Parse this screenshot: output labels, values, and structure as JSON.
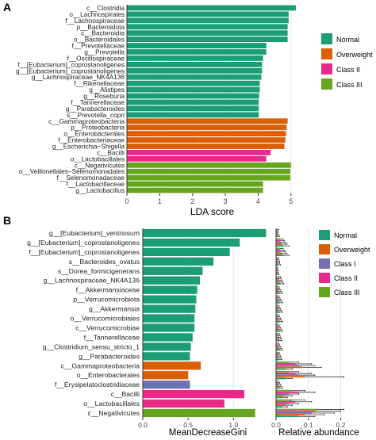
{
  "colors": {
    "normal": "#1b9e77",
    "overweight": "#d95f02",
    "class1": "#7570b3",
    "class2": "#e7298a",
    "class3": "#66a61e"
  },
  "chart_data": [
    {
      "type": "bar",
      "orientation": "horizontal",
      "panel": "A",
      "xlabel": "LDA score",
      "xlim": [
        0,
        5.2
      ],
      "xticks": [
        0,
        1,
        2,
        3,
        4,
        5
      ],
      "grid": true,
      "legend_placement": "right",
      "legend": [
        {
          "name": "Normal",
          "color_key": "normal"
        },
        {
          "name": "Overweight",
          "color_key": "overweight"
        },
        {
          "name": "Class II",
          "color_key": "class2"
        },
        {
          "name": "Class III",
          "color_key": "class3"
        }
      ],
      "bars": [
        {
          "label": "c__Clostridia",
          "value": 5.15,
          "group": "normal"
        },
        {
          "label": "o__Lachnospirales",
          "value": 4.93,
          "group": "normal"
        },
        {
          "label": "f__Lachnospiraceae",
          "value": 4.93,
          "group": "normal"
        },
        {
          "label": "p__Bacteroidota",
          "value": 4.9,
          "group": "normal"
        },
        {
          "label": "c__Bacteroidia",
          "value": 4.9,
          "group": "normal"
        },
        {
          "label": "o__Bacteroidales",
          "value": 4.9,
          "group": "normal"
        },
        {
          "label": "f__Prevotellaceae",
          "value": 4.25,
          "group": "normal"
        },
        {
          "label": "g__Prevotella",
          "value": 4.25,
          "group": "normal"
        },
        {
          "label": "f__Oscillospiraceae",
          "value": 4.15,
          "group": "normal"
        },
        {
          "label": "f__[Eubacterium]_coprostanoligenes",
          "value": 4.12,
          "group": "normal"
        },
        {
          "label": "g__[Eubacterium]_coprostanoligenes",
          "value": 4.12,
          "group": "normal"
        },
        {
          "label": "g__Lachnospiraceae_NK4A136",
          "value": 4.1,
          "group": "normal"
        },
        {
          "label": "f__Rikenellaceae",
          "value": 4.05,
          "group": "normal"
        },
        {
          "label": "g__Alistipes",
          "value": 4.05,
          "group": "normal"
        },
        {
          "label": "g__Roseburia",
          "value": 4.03,
          "group": "normal"
        },
        {
          "label": "f__Tannerellaceae",
          "value": 4.02,
          "group": "normal"
        },
        {
          "label": "g__Parabacteroides",
          "value": 4.02,
          "group": "normal"
        },
        {
          "label": "s__Prevotella_copri",
          "value": 4.02,
          "group": "normal"
        },
        {
          "label": "c__Gammaproteobacteria",
          "value": 4.9,
          "group": "overweight"
        },
        {
          "label": "p__Proteobacteria",
          "value": 4.87,
          "group": "overweight"
        },
        {
          "label": "o__Enterobacterales",
          "value": 4.85,
          "group": "overweight"
        },
        {
          "label": "f__Enterobacteriaceae",
          "value": 4.83,
          "group": "overweight"
        },
        {
          "label": "g__Escherichia−Shigella",
          "value": 4.8,
          "group": "overweight"
        },
        {
          "label": "c__Bacilli",
          "value": 4.38,
          "group": "class2"
        },
        {
          "label": "o__Lactobacillales",
          "value": 4.25,
          "group": "class2"
        },
        {
          "label": "c__Negativicutes",
          "value": 5.0,
          "group": "class3"
        },
        {
          "label": "o__Veillonellales−Selenomonadales",
          "value": 4.98,
          "group": "class3"
        },
        {
          "label": "f__Selenomonadaceae",
          "value": 4.98,
          "group": "class3"
        },
        {
          "label": "f__Lactobacillaceae",
          "value": 4.15,
          "group": "class3"
        },
        {
          "label": "g__Lactobacillus",
          "value": 4.15,
          "group": "class3"
        }
      ]
    },
    {
      "type": "bar",
      "orientation": "horizontal",
      "panel": "B",
      "xlabel": "MeanDecreaseGini",
      "xlim": [
        0,
        1.4
      ],
      "xticks": [
        0.0,
        0.5,
        1.0
      ],
      "grid": true,
      "bars": [
        {
          "label": "g__[Eubacterium]_ventriosum",
          "value": 1.36,
          "group": "normal"
        },
        {
          "label": "g__[Eubacterium]_coprostanoligenes",
          "value": 1.07,
          "group": "normal"
        },
        {
          "label": "f__[Eubacterium]_coprostanoligenes",
          "value": 0.96,
          "group": "normal"
        },
        {
          "label": "s__Bacteroides_ovatus",
          "value": 0.78,
          "group": "normal"
        },
        {
          "label": "s__Dorea_formicigenerans",
          "value": 0.66,
          "group": "normal"
        },
        {
          "label": "g__Lachnospiraceae_NK4A136",
          "value": 0.63,
          "group": "normal"
        },
        {
          "label": "f__Akkermansiaceae",
          "value": 0.6,
          "group": "normal"
        },
        {
          "label": "p__Verrucomicrobiota",
          "value": 0.59,
          "group": "normal"
        },
        {
          "label": "g__Akkermansia",
          "value": 0.58,
          "group": "normal"
        },
        {
          "label": "o__Verrucomicrobiales",
          "value": 0.57,
          "group": "normal"
        },
        {
          "label": "c__Verrucomicrobiae",
          "value": 0.57,
          "group": "normal"
        },
        {
          "label": "f__Tannerellaceae",
          "value": 0.55,
          "group": "normal"
        },
        {
          "label": "g__Clostridium_sensu_stricto_1",
          "value": 0.53,
          "group": "normal"
        },
        {
          "label": "g__Parabacteroides",
          "value": 0.52,
          "group": "normal"
        },
        {
          "label": "c__Gammaproteobacteria",
          "value": 0.64,
          "group": "overweight"
        },
        {
          "label": "o__Enterobacterales",
          "value": 0.5,
          "group": "overweight"
        },
        {
          "label": "f__Erysipelatoclostridiaceae",
          "value": 0.52,
          "group": "class1"
        },
        {
          "label": "c__Bacilli",
          "value": 1.12,
          "group": "class2"
        },
        {
          "label": "o__Lactobacillales",
          "value": 0.9,
          "group": "class2"
        },
        {
          "label": "c__Negativicutes",
          "value": 1.24,
          "group": "class3"
        }
      ]
    },
    {
      "type": "bar",
      "orientation": "horizontal",
      "panel": "B-right",
      "xlabel": "Relative abundance",
      "xlim": [
        0,
        0.25
      ],
      "xticks": [
        0.0,
        0.1,
        0.2
      ],
      "grid": true,
      "legend_placement": "right",
      "legend": [
        {
          "name": "Normal",
          "color_key": "normal"
        },
        {
          "name": "Overweight",
          "color_key": "overweight"
        },
        {
          "name": "Class I",
          "color_key": "class1"
        },
        {
          "name": "Class II",
          "color_key": "class2"
        },
        {
          "name": "Class III",
          "color_key": "class3"
        }
      ],
      "groups_order": [
        "class3",
        "class2",
        "class1",
        "overweight",
        "normal"
      ],
      "rows": [
        [
          0.004,
          0.003,
          0.003,
          0.004,
          0.006
        ],
        [
          0.012,
          0.014,
          0.016,
          0.018,
          0.022
        ],
        [
          0.012,
          0.014,
          0.016,
          0.018,
          0.022
        ],
        [
          0.004,
          0.005,
          0.006,
          0.006,
          0.008
        ],
        [
          0.003,
          0.003,
          0.004,
          0.004,
          0.005
        ],
        [
          0.008,
          0.009,
          0.01,
          0.012,
          0.014
        ],
        [
          0.004,
          0.006,
          0.008,
          0.01,
          0.012
        ],
        [
          0.004,
          0.006,
          0.008,
          0.01,
          0.012
        ],
        [
          0.004,
          0.006,
          0.008,
          0.01,
          0.012
        ],
        [
          0.004,
          0.006,
          0.008,
          0.01,
          0.012
        ],
        [
          0.004,
          0.006,
          0.008,
          0.01,
          0.012
        ],
        [
          0.006,
          0.007,
          0.008,
          0.009,
          0.01
        ],
        [
          0.005,
          0.006,
          0.008,
          0.01,
          0.012
        ],
        [
          0.006,
          0.007,
          0.008,
          0.009,
          0.01
        ],
        [
          0.04,
          0.06,
          0.07,
          0.08,
          0.03
        ],
        [
          0.04,
          0.06,
          0.07,
          0.09,
          0.03
        ],
        [
          0.004,
          0.006,
          0.008,
          0.01,
          0.012
        ],
        [
          0.05,
          0.07,
          0.04,
          0.03,
          0.02
        ],
        [
          0.05,
          0.06,
          0.04,
          0.03,
          0.02
        ],
        [
          0.13,
          0.12,
          0.11,
          0.09,
          0.07
        ]
      ],
      "errors": [
        [
          0.004,
          0.003,
          0.003,
          0.004,
          0.005
        ],
        [
          0.01,
          0.012,
          0.014,
          0.016,
          0.018
        ],
        [
          0.01,
          0.012,
          0.014,
          0.016,
          0.018
        ],
        [
          0.004,
          0.004,
          0.005,
          0.005,
          0.006
        ],
        [
          0.002,
          0.002,
          0.003,
          0.003,
          0.004
        ],
        [
          0.006,
          0.007,
          0.008,
          0.009,
          0.01
        ],
        [
          0.004,
          0.005,
          0.006,
          0.007,
          0.008
        ],
        [
          0.004,
          0.005,
          0.006,
          0.007,
          0.008
        ],
        [
          0.004,
          0.005,
          0.006,
          0.007,
          0.008
        ],
        [
          0.004,
          0.005,
          0.006,
          0.007,
          0.008
        ],
        [
          0.004,
          0.005,
          0.006,
          0.007,
          0.008
        ],
        [
          0.004,
          0.005,
          0.006,
          0.007,
          0.008
        ],
        [
          0.004,
          0.005,
          0.006,
          0.007,
          0.008
        ],
        [
          0.004,
          0.005,
          0.006,
          0.007,
          0.008
        ],
        [
          0.03,
          0.05,
          0.05,
          0.06,
          0.02
        ],
        [
          0.03,
          0.05,
          0.05,
          0.12,
          0.02
        ],
        [
          0.004,
          0.005,
          0.006,
          0.007,
          0.008
        ],
        [
          0.04,
          0.05,
          0.03,
          0.02,
          0.015
        ],
        [
          0.04,
          0.05,
          0.03,
          0.02,
          0.015
        ],
        [
          0.08,
          0.08,
          0.07,
          0.06,
          0.05
        ]
      ]
    }
  ],
  "panel_labels": [
    "A",
    "B"
  ]
}
